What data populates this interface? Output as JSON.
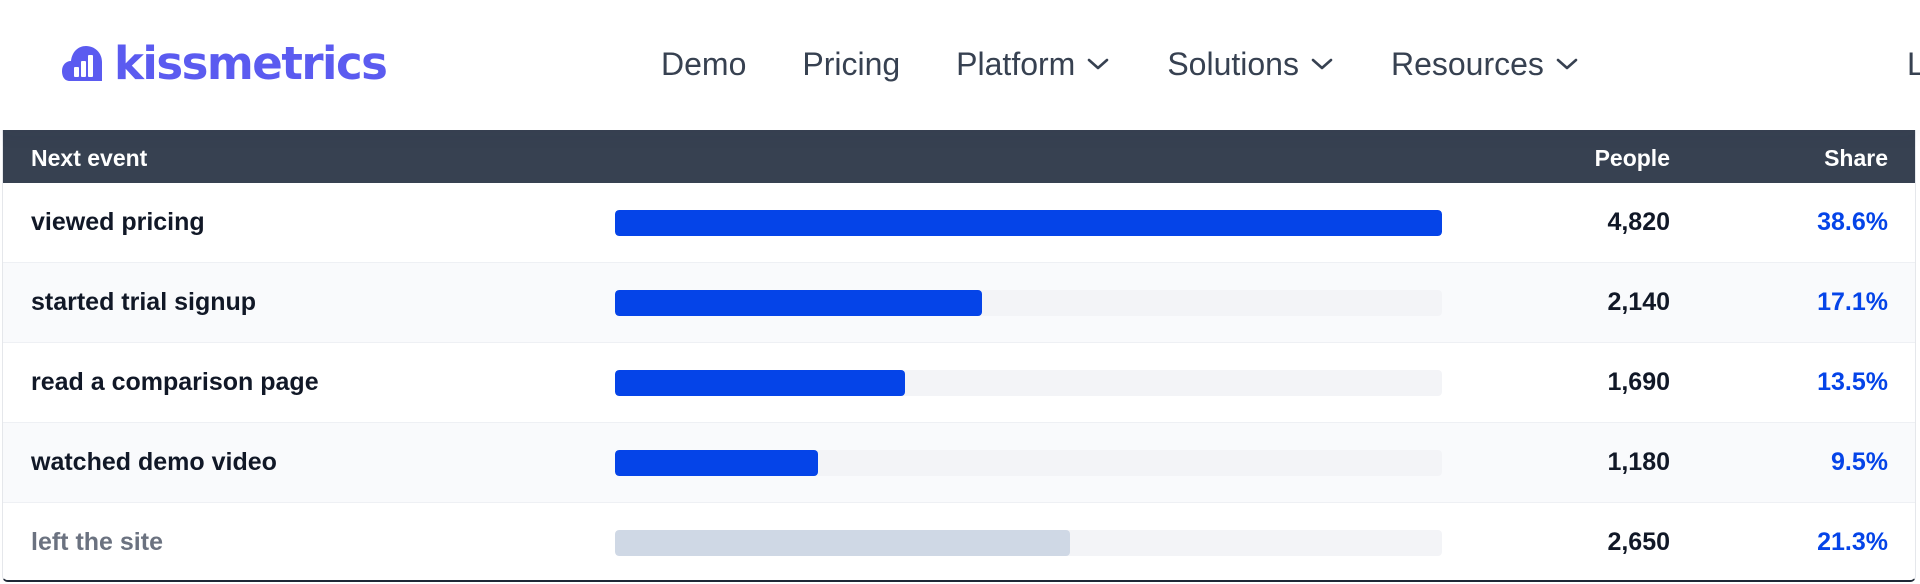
{
  "brand": {
    "name": "kissmetrics",
    "color": "#5b5bf0",
    "icon": "bar-chart-cloud-icon"
  },
  "nav": {
    "items": [
      {
        "label": "Demo",
        "has_dropdown": false
      },
      {
        "label": "Pricing",
        "has_dropdown": false
      },
      {
        "label": "Platform",
        "has_dropdown": true
      },
      {
        "label": "Solutions",
        "has_dropdown": true
      },
      {
        "label": "Resources",
        "has_dropdown": true
      }
    ],
    "cut_off_item": "L"
  },
  "table": {
    "headers": {
      "event": "Next event",
      "people": "People",
      "share": "Share"
    },
    "colors": {
      "header_bg": "#374151",
      "bar": "#0544e8",
      "bar_muted": "#cfd8e5",
      "share_text": "#0544e8"
    },
    "rows": [
      {
        "event": "viewed pricing",
        "people": "4,820",
        "share": "38.6%",
        "bar_fraction": 1.0,
        "muted": false
      },
      {
        "event": "started trial signup",
        "people": "2,140",
        "share": "17.1%",
        "bar_fraction": 0.444,
        "muted": false
      },
      {
        "event": "read a comparison page",
        "people": "1,690",
        "share": "13.5%",
        "bar_fraction": 0.351,
        "muted": false
      },
      {
        "event": "watched demo video",
        "people": "1,180",
        "share": "9.5%",
        "bar_fraction": 0.245,
        "muted": false
      },
      {
        "event": "left the site",
        "people": "2,650",
        "share": "21.3%",
        "bar_fraction": 0.55,
        "muted": true
      }
    ]
  }
}
